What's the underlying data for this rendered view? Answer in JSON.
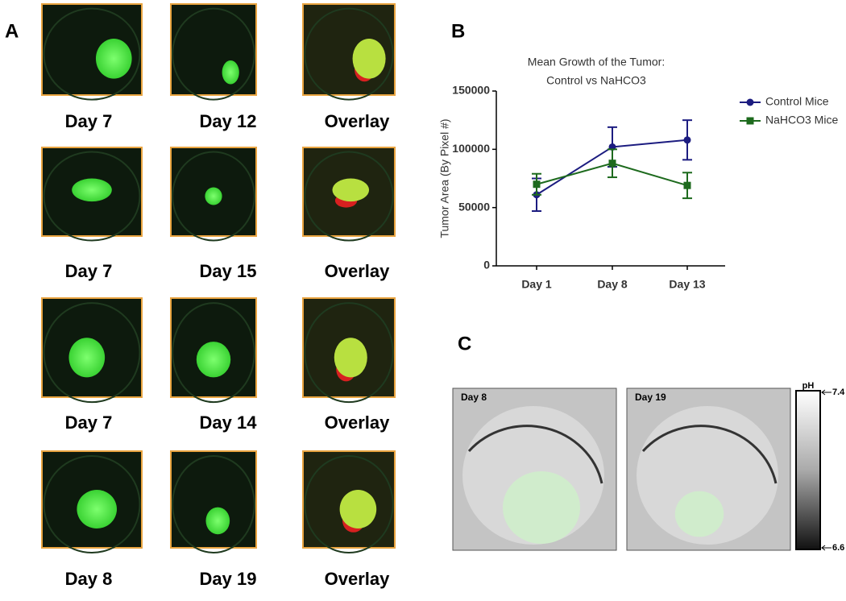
{
  "panel_labels": [
    "A",
    "B",
    "C"
  ],
  "panel_a": {
    "rows": [
      [
        "Day 7",
        "Day 12",
        "Overlay"
      ],
      [
        "Day 7",
        "Day 15",
        "Overlay"
      ],
      [
        "Day 7",
        "Day 14",
        "Overlay"
      ],
      [
        "Day 8",
        "Day 19",
        "Overlay"
      ]
    ]
  },
  "chart_data": {
    "type": "line",
    "title": "Mean Growth of the Tumor:",
    "subtitle": "Control vs NaHCO3",
    "y_label": "Tumor Area (By Pixel #)",
    "categories": [
      "Day 1",
      "Day 8",
      "Day 13"
    ],
    "series": [
      {
        "name": "Control Mice",
        "color": "#1c1c80",
        "marker": "circle",
        "values": [
          61000,
          102000,
          108000
        ],
        "errors": [
          14000,
          17000,
          17000
        ]
      },
      {
        "name": "NaHCO3 Mice",
        "color": "#1d6a1d",
        "marker": "square",
        "values": [
          70000,
          88000,
          69000
        ],
        "errors": [
          9000,
          12000,
          11000
        ]
      }
    ],
    "ylim": [
      0,
      150000
    ],
    "yticks": [
      0,
      50000,
      100000,
      150000
    ],
    "grid": false,
    "legend": "right"
  },
  "panel_c": {
    "images": [
      "Day 8",
      "Day 19"
    ],
    "colorbar": {
      "title": "pH",
      "top": "7.4",
      "bottom": "6.6"
    }
  }
}
